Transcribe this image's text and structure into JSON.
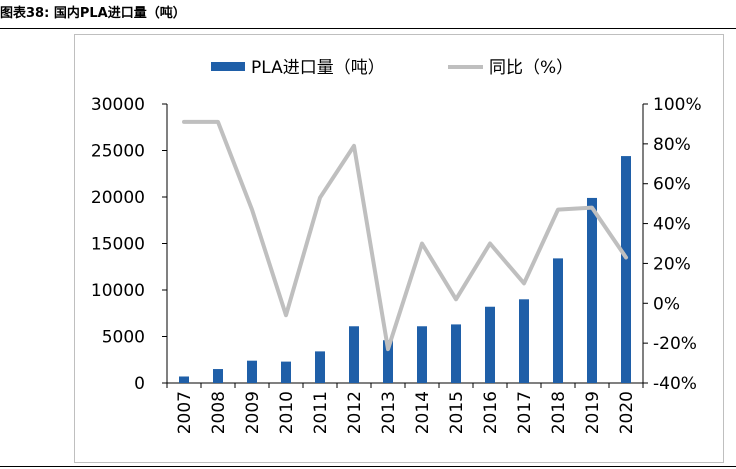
{
  "figure": {
    "title": "图表38:  国内PLA进口量（吨）"
  },
  "chart_data": {
    "type": "bar",
    "categories": [
      "2007",
      "2008",
      "2009",
      "2010",
      "2011",
      "2012",
      "2013",
      "2014",
      "2015",
      "2016",
      "2017",
      "2018",
      "2019",
      "2020"
    ],
    "series": [
      {
        "name": "PLA进口量（吨）",
        "type": "bar",
        "axis": "left",
        "color": "#1f5fa8",
        "values": [
          700,
          1500,
          2400,
          2300,
          3400,
          6100,
          4600,
          6100,
          6300,
          8200,
          9000,
          13400,
          19900,
          24400
        ]
      },
      {
        "name": "同比（%）",
        "type": "line",
        "axis": "right",
        "color": "#bfbfbf",
        "values": [
          91,
          91,
          47,
          -6,
          53,
          79,
          -23,
          30,
          2,
          30,
          10,
          47,
          48,
          23
        ]
      }
    ],
    "y_left": {
      "lim": [
        0,
        30000
      ],
      "ticks": [
        "0",
        "5000",
        "10000",
        "15000",
        "20000",
        "25000",
        "30000"
      ]
    },
    "y_right": {
      "lim": [
        -40,
        100
      ],
      "ticks": [
        "-40%",
        "-20%",
        "0%",
        "20%",
        "40%",
        "60%",
        "80%",
        "100%"
      ]
    },
    "grid": false,
    "legend_position": "top-center"
  }
}
